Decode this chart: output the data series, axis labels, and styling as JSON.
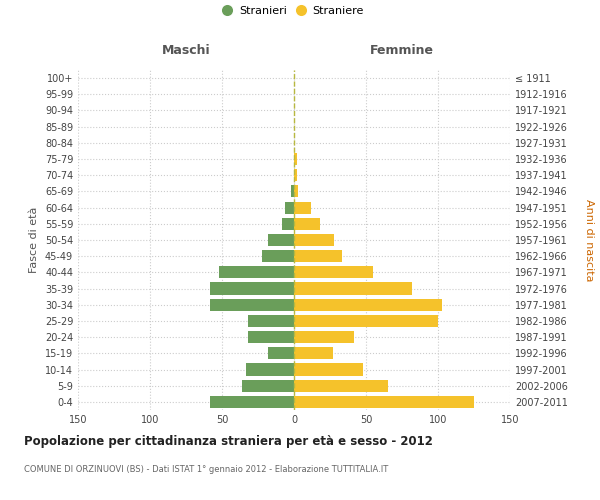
{
  "age_groups": [
    "0-4",
    "5-9",
    "10-14",
    "15-19",
    "20-24",
    "25-29",
    "30-34",
    "35-39",
    "40-44",
    "45-49",
    "50-54",
    "55-59",
    "60-64",
    "65-69",
    "70-74",
    "75-79",
    "80-84",
    "85-89",
    "90-94",
    "95-99",
    "100+"
  ],
  "birth_years": [
    "2007-2011",
    "2002-2006",
    "1997-2001",
    "1992-1996",
    "1987-1991",
    "1982-1986",
    "1977-1981",
    "1972-1976",
    "1967-1971",
    "1962-1966",
    "1957-1961",
    "1952-1956",
    "1947-1951",
    "1942-1946",
    "1937-1941",
    "1932-1936",
    "1927-1931",
    "1922-1926",
    "1917-1921",
    "1912-1916",
    "≤ 1911"
  ],
  "maschi": [
    58,
    36,
    33,
    18,
    32,
    32,
    58,
    58,
    52,
    22,
    18,
    8,
    6,
    2,
    0,
    0,
    0,
    0,
    0,
    0,
    0
  ],
  "femmine": [
    125,
    65,
    48,
    27,
    42,
    100,
    103,
    82,
    55,
    33,
    28,
    18,
    12,
    3,
    2,
    2,
    0,
    0,
    0,
    0,
    0
  ],
  "maschi_color": "#6a9e5a",
  "femmine_color": "#f5c22b",
  "background_color": "#ffffff",
  "grid_color": "#cccccc",
  "dashed_line_color": "#b8b840",
  "title": "Popolazione per cittadinanza straniera per età e sesso - 2012",
  "subtitle": "COMUNE DI ORZINUOVI (BS) - Dati ISTAT 1° gennaio 2012 - Elaborazione TUTTITALIA.IT",
  "xlabel_left": "Maschi",
  "xlabel_right": "Femmine",
  "ylabel_left": "Fasce di età",
  "ylabel_right": "Anni di nascita",
  "legend_maschi": "Stranieri",
  "legend_femmine": "Straniere",
  "xlim": 150
}
